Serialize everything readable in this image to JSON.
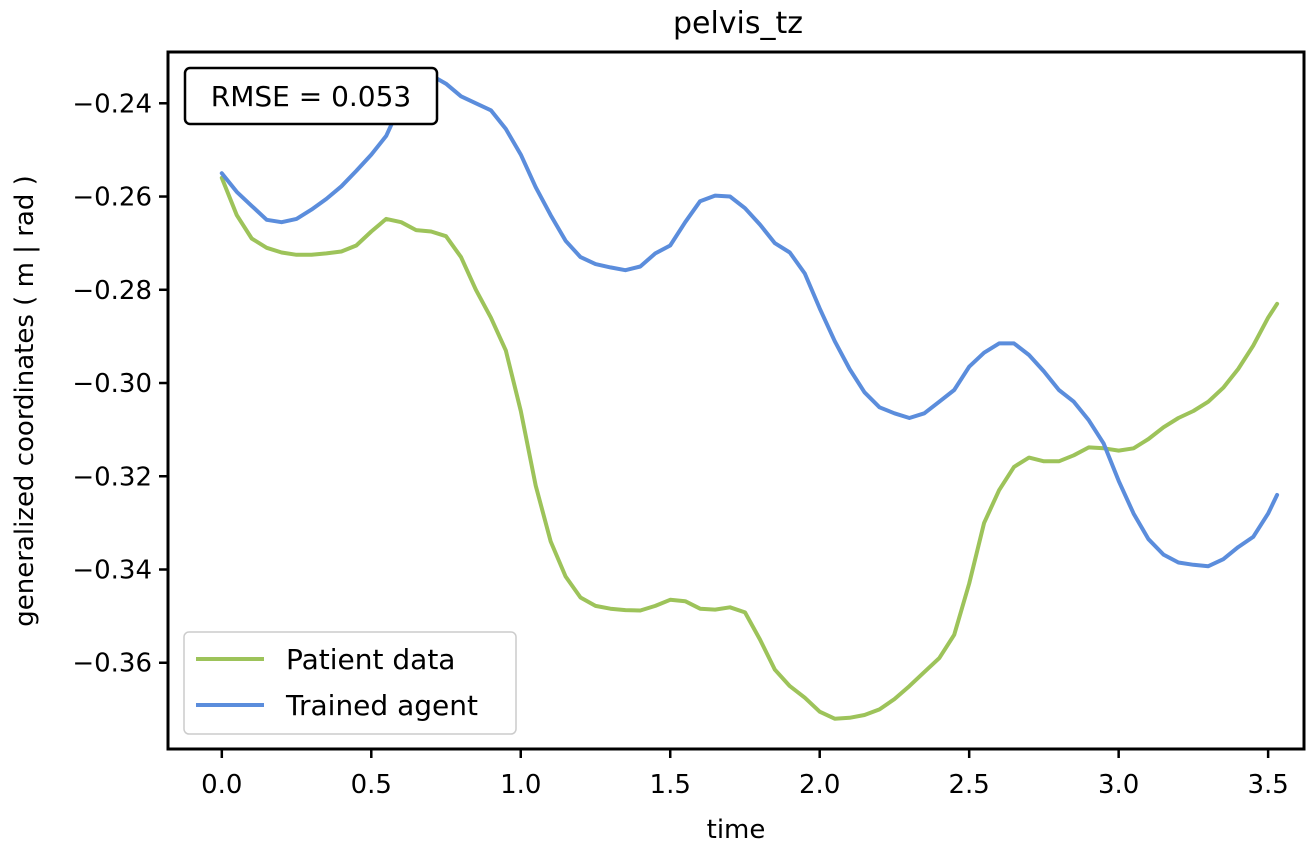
{
  "chart_data": {
    "type": "line",
    "title": "pelvis_tz",
    "xlabel": "time",
    "ylabel": "generalized coordinates ( m | rad )",
    "xlim": [
      -0.18,
      3.62
    ],
    "ylim": [
      -0.3785,
      -0.229
    ],
    "xticks": [
      0.0,
      0.5,
      1.0,
      1.5,
      2.0,
      2.5,
      3.0,
      3.5
    ],
    "xtick_labels": [
      "0.0",
      "0.5",
      "1.0",
      "1.5",
      "2.0",
      "2.5",
      "3.0",
      "3.5"
    ],
    "yticks": [
      -0.24,
      -0.26,
      -0.28,
      -0.3,
      -0.32,
      -0.34,
      -0.36
    ],
    "ytick_labels": [
      "−0.24",
      "−0.26",
      "−0.28",
      "−0.30",
      "−0.32",
      "−0.34",
      "−0.36"
    ],
    "grid": false,
    "legend_position": "lower-left",
    "annotation": "RMSE = 0.053",
    "series": [
      {
        "name": "Patient data",
        "color": "#9dc35a",
        "x": [
          0.0,
          0.05,
          0.1,
          0.15,
          0.2,
          0.25,
          0.3,
          0.35,
          0.4,
          0.45,
          0.5,
          0.55,
          0.6,
          0.65,
          0.7,
          0.75,
          0.8,
          0.85,
          0.9,
          0.95,
          1.0,
          1.05,
          1.1,
          1.15,
          1.2,
          1.25,
          1.3,
          1.35,
          1.4,
          1.45,
          1.5,
          1.55,
          1.6,
          1.65,
          1.7,
          1.75,
          1.8,
          1.85,
          1.9,
          1.95,
          2.0,
          2.05,
          2.1,
          2.15,
          2.2,
          2.25,
          2.3,
          2.35,
          2.4,
          2.45,
          2.5,
          2.55,
          2.6,
          2.65,
          2.7,
          2.75,
          2.8,
          2.85,
          2.9,
          2.95,
          3.0,
          3.05,
          3.1,
          3.15,
          3.2,
          3.25,
          3.3,
          3.35,
          3.4,
          3.45,
          3.5,
          3.53
        ],
        "y": [
          -0.256,
          -0.264,
          -0.269,
          -0.271,
          -0.272,
          -0.2725,
          -0.2725,
          -0.2722,
          -0.2718,
          -0.2705,
          -0.2675,
          -0.2648,
          -0.2655,
          -0.2672,
          -0.2675,
          -0.2685,
          -0.273,
          -0.28,
          -0.286,
          -0.293,
          -0.306,
          -0.322,
          -0.334,
          -0.3415,
          -0.346,
          -0.3478,
          -0.3484,
          -0.3487,
          -0.3488,
          -0.3478,
          -0.3465,
          -0.3468,
          -0.3484,
          -0.3486,
          -0.3481,
          -0.3492,
          -0.355,
          -0.3615,
          -0.365,
          -0.3675,
          -0.3705,
          -0.372,
          -0.3718,
          -0.3712,
          -0.37,
          -0.3678,
          -0.365,
          -0.362,
          -0.359,
          -0.354,
          -0.343,
          -0.33,
          -0.323,
          -0.318,
          -0.316,
          -0.3168,
          -0.3168,
          -0.3155,
          -0.3138,
          -0.314,
          -0.3145,
          -0.314,
          -0.312,
          -0.3095,
          -0.3075,
          -0.306,
          -0.304,
          -0.301,
          -0.297,
          -0.292,
          -0.286,
          -0.283
        ]
      },
      {
        "name": "Trained agent",
        "color": "#5b8ddc",
        "x": [
          0.0,
          0.05,
          0.1,
          0.15,
          0.2,
          0.25,
          0.3,
          0.35,
          0.4,
          0.45,
          0.5,
          0.55,
          0.6,
          0.65,
          0.7,
          0.75,
          0.8,
          0.85,
          0.9,
          0.95,
          1.0,
          1.05,
          1.1,
          1.15,
          1.2,
          1.25,
          1.3,
          1.35,
          1.4,
          1.45,
          1.5,
          1.55,
          1.6,
          1.65,
          1.7,
          1.75,
          1.8,
          1.85,
          1.9,
          1.95,
          2.0,
          2.05,
          2.1,
          2.15,
          2.2,
          2.25,
          2.3,
          2.35,
          2.4,
          2.45,
          2.5,
          2.55,
          2.6,
          2.65,
          2.7,
          2.75,
          2.8,
          2.85,
          2.9,
          2.95,
          3.0,
          3.05,
          3.1,
          3.15,
          3.2,
          3.25,
          3.3,
          3.35,
          3.4,
          3.45,
          3.5,
          3.53
        ],
        "y": [
          -0.255,
          -0.259,
          -0.262,
          -0.265,
          -0.2655,
          -0.2648,
          -0.2628,
          -0.2605,
          -0.2578,
          -0.2545,
          -0.251,
          -0.247,
          -0.24,
          -0.2355,
          -0.234,
          -0.2358,
          -0.2385,
          -0.24,
          -0.2415,
          -0.2455,
          -0.251,
          -0.258,
          -0.264,
          -0.2695,
          -0.273,
          -0.2745,
          -0.2752,
          -0.2758,
          -0.275,
          -0.2722,
          -0.2705,
          -0.2655,
          -0.261,
          -0.2598,
          -0.26,
          -0.2625,
          -0.266,
          -0.27,
          -0.272,
          -0.2765,
          -0.284,
          -0.291,
          -0.297,
          -0.302,
          -0.3052,
          -0.3065,
          -0.3075,
          -0.3065,
          -0.304,
          -0.3015,
          -0.2965,
          -0.2935,
          -0.2915,
          -0.2915,
          -0.294,
          -0.2975,
          -0.3015,
          -0.304,
          -0.308,
          -0.313,
          -0.321,
          -0.328,
          -0.3335,
          -0.3368,
          -0.3385,
          -0.339,
          -0.3393,
          -0.3378,
          -0.3352,
          -0.333,
          -0.328,
          -0.324
        ]
      }
    ]
  }
}
